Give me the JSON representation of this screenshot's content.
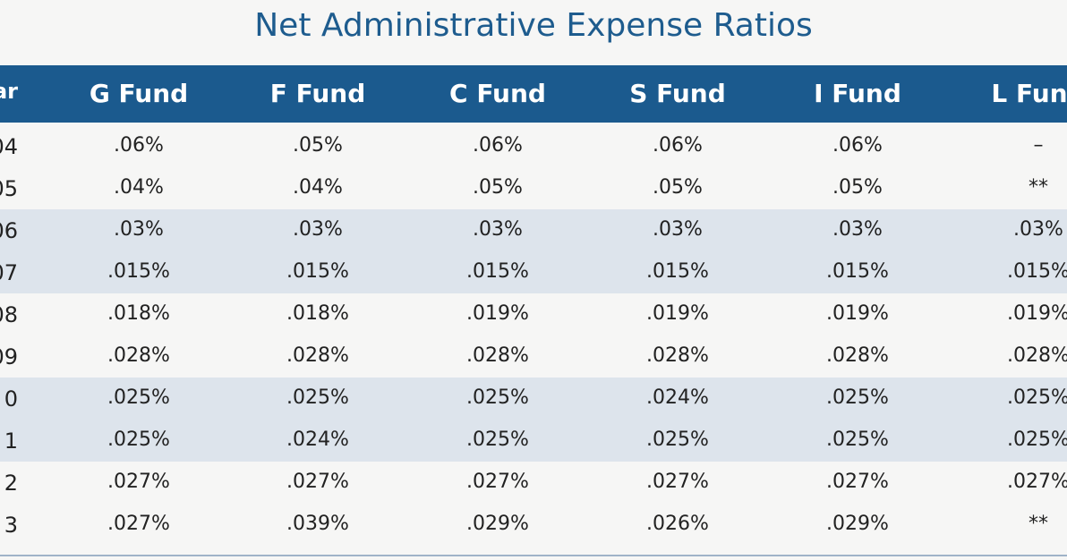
{
  "title": "Net Administrative Expense Ratios",
  "table": {
    "header": [
      "ar",
      "G Fund",
      "F Fund",
      "C Fund",
      "S Fund",
      "I Fund",
      "L Fund"
    ],
    "rows": [
      [
        "04",
        ".06%",
        ".05%",
        ".06%",
        ".06%",
        ".06%",
        "–"
      ],
      [
        "05",
        ".04%",
        ".04%",
        ".05%",
        ".05%",
        ".05%",
        "**"
      ],
      [
        "06",
        ".03%",
        ".03%",
        ".03%",
        ".03%",
        ".03%",
        ".03%"
      ],
      [
        "07",
        ".015%",
        ".015%",
        ".015%",
        ".015%",
        ".015%",
        ".015%"
      ],
      [
        "08",
        ".018%",
        ".018%",
        ".019%",
        ".019%",
        ".019%",
        ".019%"
      ],
      [
        "09",
        ".028%",
        ".028%",
        ".028%",
        ".028%",
        ".028%",
        ".028%"
      ],
      [
        "0",
        ".025%",
        ".025%",
        ".025%",
        ".024%",
        ".025%",
        ".025%"
      ],
      [
        "1",
        ".025%",
        ".024%",
        ".025%",
        ".025%",
        ".025%",
        ".025%"
      ],
      [
        "2",
        ".027%",
        ".027%",
        ".027%",
        ".027%",
        ".027%",
        ".027%"
      ],
      [
        "3",
        ".027%",
        ".039%",
        ".029%",
        ".026%",
        ".029%",
        "**"
      ]
    ]
  }
}
